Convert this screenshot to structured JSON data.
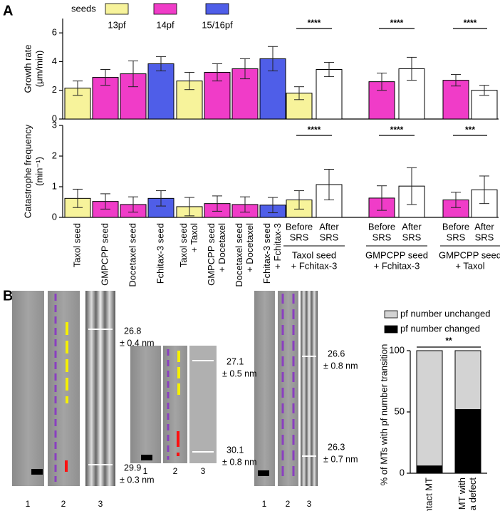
{
  "panels": [
    "A",
    "B"
  ],
  "chart_data": [
    {
      "type": "bar",
      "ylabel": [
        "Growth rate",
        "(μm/min)"
      ],
      "legend": {
        "title": "seeds",
        "items": [
          {
            "label": "13pf",
            "color": "#f7f39b"
          },
          {
            "label": "14pf",
            "color": "#f03cc8"
          },
          {
            "label": "15/16pf",
            "color": "#4f5ee8"
          }
        ]
      },
      "colors": [
        "#f7f39b",
        "#f03cc8",
        "#f03cc8",
        "#4f5ee8",
        "#f7f39b",
        "#f03cc8",
        "#f03cc8",
        "#4f5ee8",
        "#f7f39b",
        "#ffffff",
        "#f03cc8",
        "#ffffff",
        "#f03cc8",
        "#ffffff"
      ],
      "values": [
        2.15,
        2.9,
        3.15,
        3.85,
        2.65,
        3.25,
        3.5,
        4.2,
        1.8,
        3.45,
        2.6,
        3.5,
        2.7,
        2.0
      ],
      "errors": [
        0.5,
        0.55,
        0.9,
        0.5,
        0.6,
        0.6,
        0.7,
        0.85,
        0.45,
        0.5,
        0.6,
        0.8,
        0.4,
        0.35
      ],
      "annotations": [
        "****",
        "****",
        "****"
      ],
      "ylim": [
        0,
        7
      ],
      "yticks": [
        0,
        2,
        4,
        6
      ]
    },
    {
      "type": "bar",
      "ylabel": [
        "Catastrophe frequency",
        "(min⁻¹)"
      ],
      "categories": [
        [
          "Taxol seed"
        ],
        [
          "GMPCPP seed"
        ],
        [
          "Docetaxel seed"
        ],
        [
          "Fchitax-3 seed"
        ],
        [
          "Taxol seed",
          "+ Taxol"
        ],
        [
          "GMPCPP seed",
          "+ Docetaxel"
        ],
        [
          "Docetaxel seed",
          "+ Docetaxel"
        ],
        [
          "Fchitax-3 seed",
          "+ Fchitax-3"
        ],
        [
          "Before",
          "SRS"
        ],
        [
          "After",
          "SRS"
        ],
        [
          "Before",
          "SRS"
        ],
        [
          "After",
          "SRS"
        ],
        [
          "Before",
          "SRS"
        ],
        [
          "After",
          "SRS"
        ]
      ],
      "group_labels": [
        [
          "Taxol seed",
          "+ Fchitax-3"
        ],
        [
          "GMPCPP seed",
          "+ Fchitax-3"
        ],
        [
          "GMPCPP seed",
          "+ Taxol"
        ]
      ],
      "colors": [
        "#f7f39b",
        "#f03cc8",
        "#f03cc8",
        "#4f5ee8",
        "#f7f39b",
        "#f03cc8",
        "#f03cc8",
        "#4f5ee8",
        "#f7f39b",
        "#ffffff",
        "#f03cc8",
        "#ffffff",
        "#f03cc8",
        "#ffffff"
      ],
      "values": [
        0.62,
        0.52,
        0.42,
        0.62,
        0.35,
        0.45,
        0.42,
        0.4,
        0.57,
        1.07,
        0.63,
        1.02,
        0.57,
        0.9
      ],
      "errors": [
        0.3,
        0.25,
        0.25,
        0.25,
        0.3,
        0.25,
        0.25,
        0.25,
        0.3,
        0.5,
        0.4,
        0.6,
        0.25,
        0.45
      ],
      "annotations": [
        "****",
        "****",
        "***"
      ],
      "ylim": [
        0,
        3
      ],
      "yticks": [
        0,
        1,
        2,
        3
      ]
    },
    {
      "type": "stacked_bar",
      "ylabel": "% of MTs with pf number transition",
      "categories": [
        [
          "Intact MT"
        ],
        [
          "MT with",
          "a defect"
        ]
      ],
      "series": [
        {
          "name": "pf number changed",
          "color": "#000000",
          "values": [
            6,
            52
          ]
        },
        {
          "name": "pf number unchanged",
          "color": "#d3d3d3",
          "values": [
            94,
            48
          ]
        }
      ],
      "annotation": "**",
      "ylim": [
        0,
        100
      ],
      "yticks": [
        0,
        50,
        100
      ]
    }
  ],
  "images": {
    "left": {
      "lanes": [
        "1",
        "2",
        "3"
      ],
      "measurements": [
        [
          "26.8",
          "± 0.4 nm"
        ],
        [
          "29.9",
          "± 0.3 nm"
        ]
      ]
    },
    "middle": {
      "lanes": [
        "1",
        "2",
        "3"
      ],
      "measurements": [
        [
          "27.1",
          "± 0.5 nm"
        ],
        [
          "30.1",
          "± 0.8 nm"
        ]
      ]
    },
    "right": {
      "lanes": [
        "1",
        "2",
        "3"
      ],
      "measurements": [
        [
          "26.6",
          "± 0.8 nm"
        ],
        [
          "26.3",
          "± 0.7 nm"
        ]
      ]
    }
  }
}
